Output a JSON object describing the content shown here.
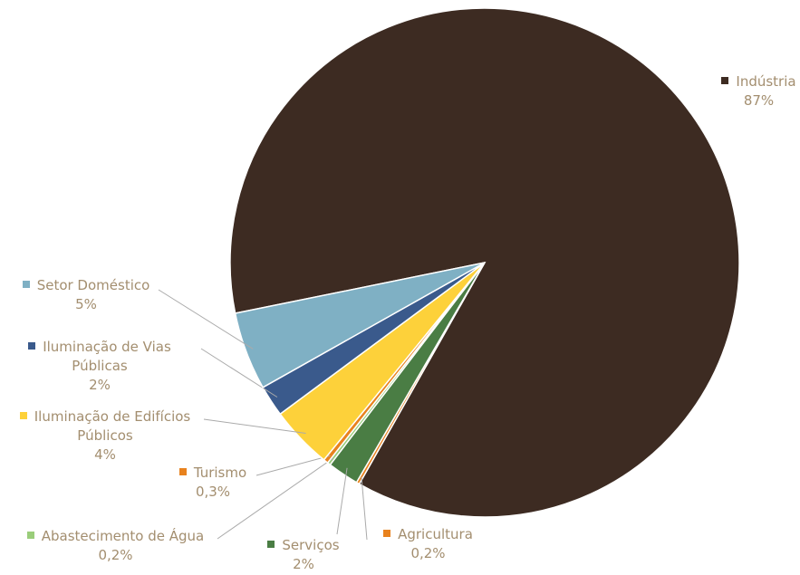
{
  "chart_data": {
    "type": "pie",
    "categories": [
      "Indústria",
      "Agricultura",
      "Serviços",
      "Abastecimento de Água",
      "Turismo",
      "Iluminação de Edifícios Públicos",
      "Iluminação de Vias Públicas",
      "Setor Doméstico"
    ],
    "values": [
      87,
      0.2,
      2,
      0.2,
      0.3,
      4,
      2,
      5
    ],
    "value_labels": [
      "87%",
      "0,2%",
      "2%",
      "0,2%",
      "0,3%",
      "4%",
      "2%",
      "5%"
    ],
    "colors": [
      "#3d2b22",
      "#e8821e",
      "#4a7d44",
      "#9acd7a",
      "#e8821e",
      "#fdd13a",
      "#3a5a8c",
      "#7fb0c4"
    ]
  }
}
